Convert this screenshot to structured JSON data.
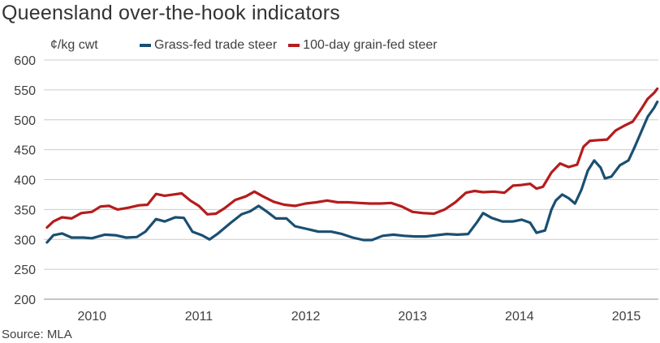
{
  "chart_data": {
    "type": "line",
    "title": "Queensland over-the-hook indicators",
    "ylabel": "¢/kg cwt",
    "source": "Source: MLA",
    "ylim": [
      200,
      600
    ],
    "yticks": [
      200,
      250,
      300,
      350,
      400,
      450,
      500,
      550,
      600
    ],
    "xlim": [
      2009.55,
      2015.3
    ],
    "xticks": [
      {
        "value": 2010.0,
        "label": "2010"
      },
      {
        "value": 2011.0,
        "label": "2011"
      },
      {
        "value": 2012.0,
        "label": "2012"
      },
      {
        "value": 2013.0,
        "label": "2013"
      },
      {
        "value": 2014.0,
        "label": "2014"
      },
      {
        "value": 2015.0,
        "label": "2015"
      }
    ],
    "grid": true,
    "legend_position": "top",
    "series": [
      {
        "name": "Grass-fed trade steer",
        "color": "#1a4f72",
        "points": [
          [
            2009.58,
            295
          ],
          [
            2009.64,
            307
          ],
          [
            2009.72,
            310
          ],
          [
            2009.81,
            303
          ],
          [
            2009.92,
            303
          ],
          [
            2010.0,
            302
          ],
          [
            2010.12,
            308
          ],
          [
            2010.22,
            307
          ],
          [
            2010.32,
            303
          ],
          [
            2010.42,
            304
          ],
          [
            2010.5,
            313
          ],
          [
            2010.6,
            334
          ],
          [
            2010.68,
            330
          ],
          [
            2010.78,
            337
          ],
          [
            2010.86,
            336
          ],
          [
            2010.94,
            313
          ],
          [
            2011.03,
            307
          ],
          [
            2011.1,
            300
          ],
          [
            2011.18,
            310
          ],
          [
            2011.3,
            328
          ],
          [
            2011.4,
            342
          ],
          [
            2011.48,
            347
          ],
          [
            2011.56,
            356
          ],
          [
            2011.64,
            346
          ],
          [
            2011.72,
            335
          ],
          [
            2011.82,
            335
          ],
          [
            2011.9,
            322
          ],
          [
            2012.0,
            318
          ],
          [
            2012.12,
            313
          ],
          [
            2012.24,
            313
          ],
          [
            2012.34,
            309
          ],
          [
            2012.44,
            303
          ],
          [
            2012.54,
            299
          ],
          [
            2012.62,
            299
          ],
          [
            2012.72,
            306
          ],
          [
            2012.82,
            308
          ],
          [
            2012.92,
            306
          ],
          [
            2013.02,
            305
          ],
          [
            2013.12,
            305
          ],
          [
            2013.22,
            307
          ],
          [
            2013.32,
            309
          ],
          [
            2013.42,
            308
          ],
          [
            2013.52,
            309
          ],
          [
            2013.6,
            328
          ],
          [
            2013.66,
            344
          ],
          [
            2013.74,
            336
          ],
          [
            2013.84,
            330
          ],
          [
            2013.94,
            330
          ],
          [
            2014.02,
            333
          ],
          [
            2014.1,
            328
          ],
          [
            2014.16,
            311
          ],
          [
            2014.24,
            315
          ],
          [
            2014.3,
            350
          ],
          [
            2014.34,
            365
          ],
          [
            2014.4,
            375
          ],
          [
            2014.46,
            369
          ],
          [
            2014.52,
            360
          ],
          [
            2014.58,
            383
          ],
          [
            2014.64,
            415
          ],
          [
            2014.7,
            432
          ],
          [
            2014.76,
            420
          ],
          [
            2014.8,
            402
          ],
          [
            2014.86,
            405
          ],
          [
            2014.94,
            424
          ],
          [
            2015.02,
            432
          ],
          [
            2015.08,
            455
          ],
          [
            2015.14,
            480
          ],
          [
            2015.2,
            505
          ],
          [
            2015.26,
            520
          ],
          [
            2015.29,
            530
          ]
        ]
      },
      {
        "name": "100-day grain-fed steer",
        "color": "#b51c1c",
        "points": [
          [
            2009.58,
            320
          ],
          [
            2009.64,
            330
          ],
          [
            2009.72,
            337
          ],
          [
            2009.81,
            335
          ],
          [
            2009.9,
            344
          ],
          [
            2010.0,
            346
          ],
          [
            2010.08,
            355
          ],
          [
            2010.16,
            356
          ],
          [
            2010.24,
            350
          ],
          [
            2010.34,
            353
          ],
          [
            2010.44,
            357
          ],
          [
            2010.52,
            358
          ],
          [
            2010.6,
            376
          ],
          [
            2010.68,
            373
          ],
          [
            2010.76,
            375
          ],
          [
            2010.84,
            377
          ],
          [
            2010.92,
            365
          ],
          [
            2011.0,
            356
          ],
          [
            2011.08,
            342
          ],
          [
            2011.16,
            343
          ],
          [
            2011.24,
            352
          ],
          [
            2011.34,
            366
          ],
          [
            2011.44,
            372
          ],
          [
            2011.52,
            380
          ],
          [
            2011.6,
            372
          ],
          [
            2011.7,
            363
          ],
          [
            2011.8,
            358
          ],
          [
            2011.9,
            356
          ],
          [
            2012.0,
            360
          ],
          [
            2012.1,
            362
          ],
          [
            2012.2,
            365
          ],
          [
            2012.3,
            362
          ],
          [
            2012.4,
            362
          ],
          [
            2012.5,
            361
          ],
          [
            2012.6,
            360
          ],
          [
            2012.7,
            360
          ],
          [
            2012.8,
            361
          ],
          [
            2012.9,
            355
          ],
          [
            2013.0,
            346
          ],
          [
            2013.1,
            344
          ],
          [
            2013.2,
            343
          ],
          [
            2013.3,
            350
          ],
          [
            2013.4,
            362
          ],
          [
            2013.5,
            378
          ],
          [
            2013.58,
            381
          ],
          [
            2013.66,
            379
          ],
          [
            2013.76,
            380
          ],
          [
            2013.86,
            378
          ],
          [
            2013.94,
            390
          ],
          [
            2014.02,
            391
          ],
          [
            2014.1,
            393
          ],
          [
            2014.16,
            385
          ],
          [
            2014.22,
            388
          ],
          [
            2014.3,
            412
          ],
          [
            2014.38,
            427
          ],
          [
            2014.46,
            421
          ],
          [
            2014.54,
            425
          ],
          [
            2014.6,
            455
          ],
          [
            2014.66,
            465
          ],
          [
            2014.74,
            466
          ],
          [
            2014.82,
            467
          ],
          [
            2014.9,
            482
          ],
          [
            2014.98,
            490
          ],
          [
            2015.06,
            497
          ],
          [
            2015.14,
            518
          ],
          [
            2015.2,
            535
          ],
          [
            2015.26,
            545
          ],
          [
            2015.29,
            552
          ]
        ]
      }
    ]
  }
}
